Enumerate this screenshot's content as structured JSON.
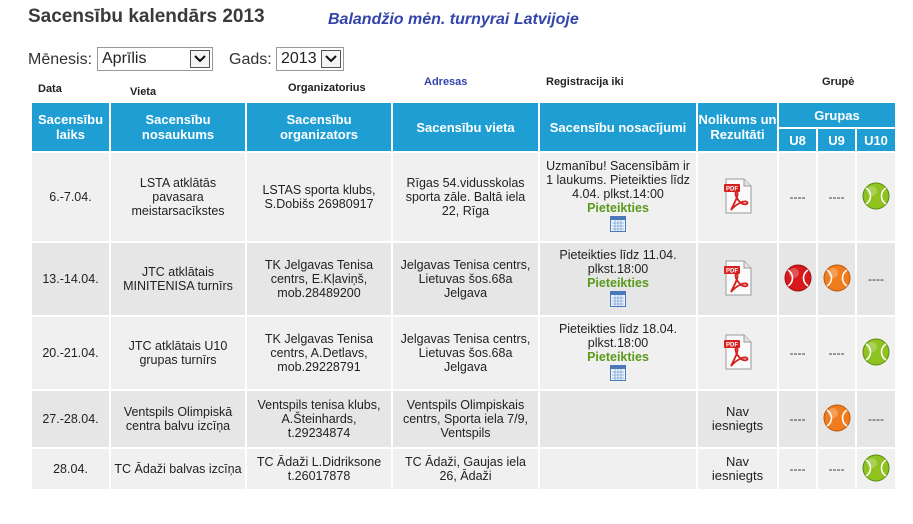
{
  "page": {
    "title": "Sacensību kalendārs 2013",
    "subtitle": "Balandžio mėn. turnyrai Latvijoje"
  },
  "filters": {
    "month_label": "Mēnesis:",
    "month_value": "Aprīlis",
    "year_label": "Gads:",
    "year_value": "2013"
  },
  "annotations": {
    "data": "Data",
    "vieta": "Vieta",
    "organizatorius": "Organizatorius",
    "adresas": "Adresas",
    "registracija": "Registracija iki",
    "grupe": "Grupė"
  },
  "table": {
    "headers": {
      "time": "Sacensību laiks",
      "name": "Sacensību nosaukums",
      "organizers": "Sacensību organizators",
      "venue": "Sacensību vieta",
      "conditions": "Sacensību nosacījumi",
      "rules": "Nolikums un Rezultāti",
      "groups": "Grupas",
      "u8": "U8",
      "u9": "U9",
      "u10": "U10"
    },
    "rows": [
      {
        "time": "6.-7.04.",
        "name": "LSTA atklātās pavasara meistarsacīkstes",
        "organizer": "LSTAS sporta klubs, S.Dobišs 26980917",
        "venue": "Rīgas 54.vidusskolas sporta zāle. Baltā iela 22, Rīga",
        "conditions": "Uzmanību! Sacensībām ir 1 laukums. Pieteikties līdz 4.04. plkst.14:00",
        "register": "Pieteikties",
        "rules_text": "",
        "rules_pdf": true,
        "u8": "----",
        "u9": "----",
        "u10": "green"
      },
      {
        "time": "13.-14.04.",
        "name": "JTC atklātais MINITENISA turnīrs",
        "organizer": "TK Jelgavas Tenisa centrs, E.Kļaviņš, mob.28489200",
        "venue": "Jelgavas Tenisa centrs, Lietuvas šos.68a Jelgava",
        "conditions": "Pieteikties līdz 11.04. plkst.18:00",
        "register": "Pieteikties",
        "rules_text": "",
        "rules_pdf": true,
        "u8": "red",
        "u9": "orange",
        "u10": "----"
      },
      {
        "time": "20.-21.04.",
        "name": "JTC atklātais U10 grupas turnīrs",
        "organizer": "TK Jelgavas Tenisa centrs, A.Detlavs, mob.29228791",
        "venue": "Jelgavas Tenisa centrs, Lietuvas šos.68a Jelgava",
        "conditions": "Pieteikties līdz 18.04. plkst.18:00",
        "register": "Pieteikties",
        "rules_text": "",
        "rules_pdf": true,
        "u8": "----",
        "u9": "----",
        "u10": "green"
      },
      {
        "time": "27.-28.04.",
        "name": "Ventspils Olimpiskā centra balvu izcīņa",
        "organizer": "Ventspils tenisa klubs, A.Šteinhards, t.29234874",
        "venue": "Ventspils Olimpiskais centrs, Sporta iela 7/9, Ventspils",
        "conditions": "",
        "register": "",
        "rules_text": "Nav iesniegts",
        "rules_pdf": false,
        "u8": "----",
        "u9": "orange",
        "u10": "----"
      },
      {
        "time": "28.04.",
        "name": "TC Ādaži balvas izcīņa",
        "organizer": "TC Ādaži L.Didriksone t.26017878",
        "venue": "TC Ādaži, Gaujas iela 26, Ādaži",
        "conditions": "",
        "register": "",
        "rules_text": "Nav iesniegts",
        "rules_pdf": false,
        "u8": "----",
        "u9": "----",
        "u10": "green"
      }
    ]
  },
  "icons": {
    "pdf": "pdf-icon",
    "calendar": "calendar-icon",
    "ball": "tennis-ball-icon",
    "dropdown": "chevron-down-icon"
  },
  "colors": {
    "header_bg": "#1e9ed3",
    "register_link": "#5a9a1c",
    "ball_green": "#8dc21f",
    "ball_orange": "#f07c1e",
    "ball_red": "#d7191c",
    "subtitle": "#3344aa"
  }
}
